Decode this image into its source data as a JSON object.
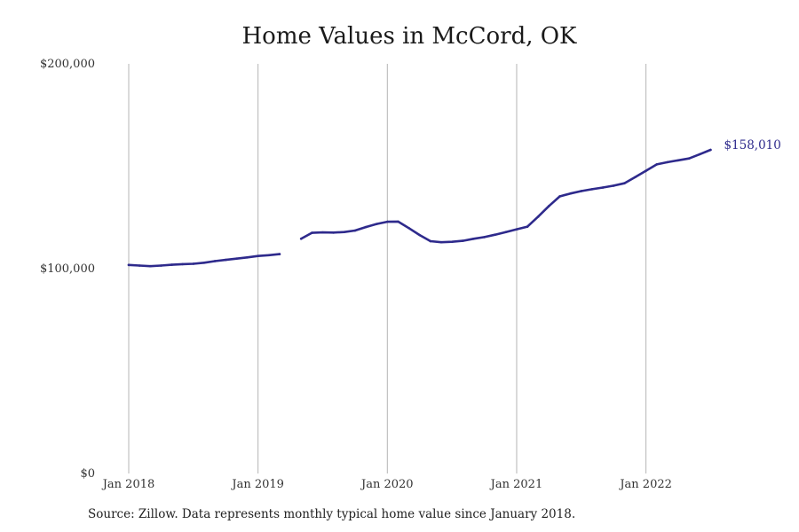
{
  "chart_data": {
    "type": "line",
    "title": "Home Values in McCord, OK",
    "xlabel": "",
    "ylabel": "",
    "ylim": [
      0,
      200000
    ],
    "xlim": [
      "2018-01",
      "2022-11"
    ],
    "grid": {
      "vertical": true,
      "horizontal": false
    },
    "legend": "none",
    "x_ticks": [
      {
        "date": "2018-01",
        "label": "Jan 2018"
      },
      {
        "date": "2019-01",
        "label": "Jan 2019"
      },
      {
        "date": "2020-01",
        "label": "Jan 2020"
      },
      {
        "date": "2021-01",
        "label": "Jan 2021"
      },
      {
        "date": "2022-01",
        "label": "Jan 2022"
      }
    ],
    "y_ticks": [
      {
        "value": 0,
        "label": "$0"
      },
      {
        "value": 100000,
        "label": "$100,000"
      },
      {
        "value": 200000,
        "label": "$200,000"
      }
    ],
    "series": [
      {
        "color": "#2e2a8c",
        "points": [
          {
            "x": "2018-01",
            "y": 101800
          },
          {
            "x": "2018-02",
            "y": 101500
          },
          {
            "x": "2018-03",
            "y": 101200
          },
          {
            "x": "2018-04",
            "y": 101500
          },
          {
            "x": "2018-05",
            "y": 101900
          },
          {
            "x": "2018-06",
            "y": 102200
          },
          {
            "x": "2018-07",
            "y": 102400
          },
          {
            "x": "2018-08",
            "y": 102900
          },
          {
            "x": "2018-09",
            "y": 103700
          },
          {
            "x": "2018-10",
            "y": 104300
          },
          {
            "x": "2018-11",
            "y": 104900
          },
          {
            "x": "2018-12",
            "y": 105500
          },
          {
            "x": "2019-01",
            "y": 106200
          },
          {
            "x": "2019-02",
            "y": 106600
          },
          {
            "x": "2019-03",
            "y": 107100
          },
          {
            "x": "2019-04",
            "y": null
          },
          {
            "x": "2019-05",
            "y": 114600
          },
          {
            "x": "2019-06",
            "y": 117500
          },
          {
            "x": "2019-07",
            "y": 117700
          },
          {
            "x": "2019-08",
            "y": 117600
          },
          {
            "x": "2019-09",
            "y": 117900
          },
          {
            "x": "2019-10",
            "y": 118600
          },
          {
            "x": "2019-11",
            "y": 120300
          },
          {
            "x": "2019-12",
            "y": 121800
          },
          {
            "x": "2020-01",
            "y": 122900
          },
          {
            "x": "2020-02",
            "y": 123000
          },
          {
            "x": "2020-03",
            "y": 119800
          },
          {
            "x": "2020-04",
            "y": 116400
          },
          {
            "x": "2020-05",
            "y": 113400
          },
          {
            "x": "2020-06",
            "y": 112900
          },
          {
            "x": "2020-07",
            "y": 113100
          },
          {
            "x": "2020-08",
            "y": 113600
          },
          {
            "x": "2020-09",
            "y": 114600
          },
          {
            "x": "2020-10",
            "y": 115400
          },
          {
            "x": "2020-11",
            "y": 116600
          },
          {
            "x": "2020-12",
            "y": 117900
          },
          {
            "x": "2021-01",
            "y": 119200
          },
          {
            "x": "2021-02",
            "y": 120500
          },
          {
            "x": "2021-03",
            "y": 125400
          },
          {
            "x": "2021-04",
            "y": 130600
          },
          {
            "x": "2021-05",
            "y": 135300
          },
          {
            "x": "2021-06",
            "y": 136700
          },
          {
            "x": "2021-07",
            "y": 137900
          },
          {
            "x": "2021-08",
            "y": 138800
          },
          {
            "x": "2021-09",
            "y": 139600
          },
          {
            "x": "2021-10",
            "y": 140500
          },
          {
            "x": "2021-11",
            "y": 141700
          },
          {
            "x": "2021-12",
            "y": 144700
          },
          {
            "x": "2022-01",
            "y": 147800
          },
          {
            "x": "2022-02",
            "y": 150900
          },
          {
            "x": "2022-03",
            "y": 152000
          },
          {
            "x": "2022-04",
            "y": 152900
          },
          {
            "x": "2022-05",
            "y": 153800
          },
          {
            "x": "2022-06",
            "y": 155900
          },
          {
            "x": "2022-07",
            "y": 158010
          }
        ]
      }
    ],
    "annotations": [
      {
        "x": "2022-07",
        "y": 158010,
        "text": "$158,010"
      }
    ],
    "source": "Source: Zillow. Data represents monthly typical home value since January 2018."
  }
}
